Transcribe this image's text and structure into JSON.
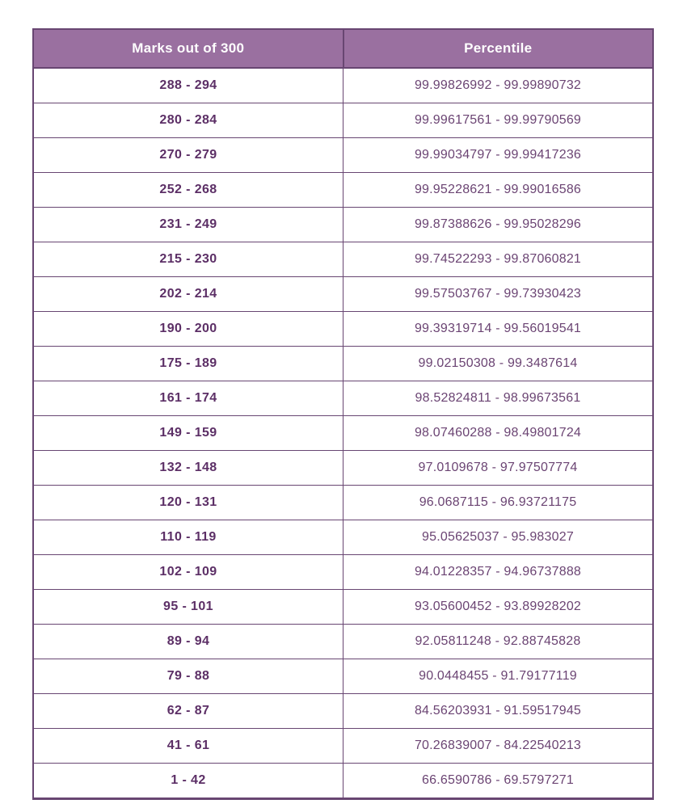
{
  "colors": {
    "header_bg": "#9a70a0",
    "header_text": "#ffffff",
    "border": "#684672",
    "marks_text": "#5c2f66",
    "percentile_text": "#6b4473",
    "row_bg": "#ffffff",
    "page_bg": "#ffffff"
  },
  "chart_data": {
    "type": "table",
    "title": "",
    "columns": [
      "Marks out of 300",
      "Percentile"
    ],
    "rows": [
      [
        "288 - 294",
        "99.99826992 - 99.99890732"
      ],
      [
        "280 - 284",
        "99.99617561 - 99.99790569"
      ],
      [
        "270 - 279",
        "99.99034797 - 99.99417236"
      ],
      [
        "252 - 268",
        "99.95228621 - 99.99016586"
      ],
      [
        "231 - 249",
        "99.87388626 - 99.95028296"
      ],
      [
        "215 - 230",
        "99.74522293 - 99.87060821"
      ],
      [
        "202 - 214",
        "99.57503767 - 99.73930423"
      ],
      [
        "190 - 200",
        "99.39319714 - 99.56019541"
      ],
      [
        "175 - 189",
        "99.02150308 - 99.3487614"
      ],
      [
        "161 - 174",
        "98.52824811 - 98.99673561"
      ],
      [
        "149 - 159",
        "98.07460288 - 98.49801724"
      ],
      [
        "132 - 148",
        "97.0109678 - 97.97507774"
      ],
      [
        "120 - 131",
        "96.0687115 - 96.93721175"
      ],
      [
        "110 - 119",
        "95.05625037 - 95.983027"
      ],
      [
        "102 - 109",
        "94.01228357 - 94.96737888"
      ],
      [
        "95 - 101",
        "93.05600452 - 93.89928202"
      ],
      [
        "89 - 94",
        "92.05811248 - 92.88745828"
      ],
      [
        "79 - 88",
        "90.0448455 - 91.79177119"
      ],
      [
        "62 - 87",
        "84.56203931 - 91.59517945"
      ],
      [
        "41 - 61",
        "70.26839007 - 84.22540213"
      ],
      [
        "1 - 42",
        "66.6590786 - 69.5797271"
      ]
    ]
  }
}
